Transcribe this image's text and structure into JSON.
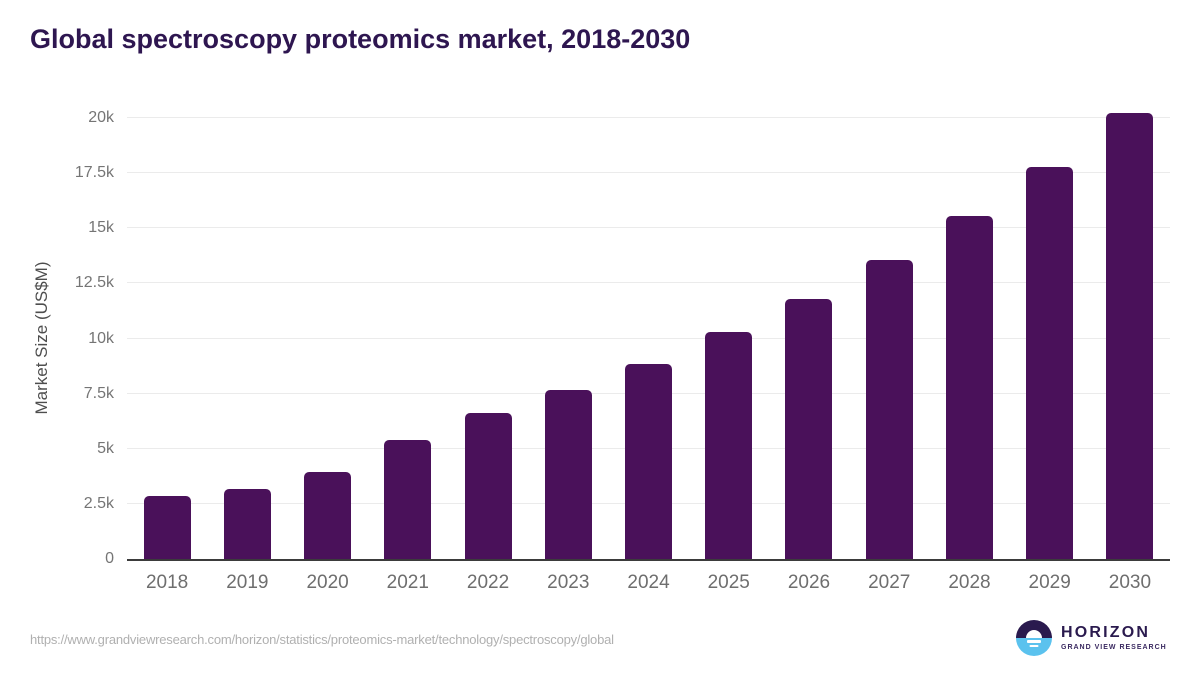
{
  "page": {
    "title": "Global spectroscopy proteomics market, 2018-2030",
    "source_url": "https://www.grandviewresearch.com/horizon/statistics/proteomics-market/technology/spectroscopy/global"
  },
  "logo": {
    "icon": "horizon-sun-circle-icon",
    "name": "HORIZON",
    "tagline": "GRAND VIEW RESEARCH"
  },
  "colors": {
    "bar": "#4A115A",
    "title_text": "#2E1650",
    "axis_text": "#757575",
    "x_axis_text": "#6e6e6e",
    "gridline": "#ebebeb",
    "axis_line": "#3b3b3b",
    "url_text": "#b0b0b0",
    "logo_purple": "#2A1A4E",
    "logo_blue": "#5BC2EE",
    "background": "#ffffff"
  },
  "chart_data": {
    "type": "bar",
    "title": "Global spectroscopy proteomics market, 2018-2030",
    "xlabel": "",
    "ylabel": "Market Size (US$M)",
    "categories": [
      "2018",
      "2019",
      "2020",
      "2021",
      "2022",
      "2023",
      "2024",
      "2025",
      "2026",
      "2027",
      "2028",
      "2029",
      "2030"
    ],
    "values": [
      2850,
      3180,
      3930,
      5400,
      6630,
      7670,
      8840,
      10280,
      11770,
      13540,
      15540,
      17770,
      20250
    ],
    "ylim": [
      0,
      20000
    ],
    "y_ticks": [
      {
        "value": 0,
        "label": "0"
      },
      {
        "value": 2500,
        "label": "2.5k"
      },
      {
        "value": 5000,
        "label": "5k"
      },
      {
        "value": 7500,
        "label": "7.5k"
      },
      {
        "value": 10000,
        "label": "10k"
      },
      {
        "value": 12500,
        "label": "12.5k"
      },
      {
        "value": 15000,
        "label": "15k"
      },
      {
        "value": 17500,
        "label": "17.5k"
      },
      {
        "value": 20000,
        "label": "20k"
      }
    ],
    "grid": "horizontal",
    "legend_position": "none",
    "bar_color": "#4A115A"
  }
}
